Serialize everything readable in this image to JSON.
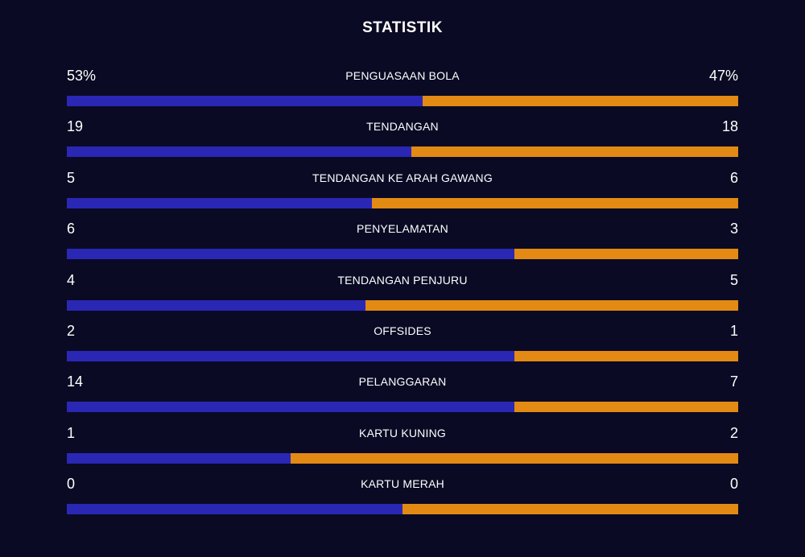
{
  "title": "STATISTIK",
  "colors": {
    "home": "#2a27b5",
    "away": "#e28a13",
    "background": "#0a0a24"
  },
  "stats": [
    {
      "label": "PENGUASAAN BOLA",
      "home": "53%",
      "away": "47%",
      "home_value": 53,
      "away_value": 47
    },
    {
      "label": "TENDANGAN",
      "home": "19",
      "away": "18",
      "home_value": 19,
      "away_value": 18
    },
    {
      "label": "TENDANGAN KE ARAH GAWANG",
      "home": "5",
      "away": "6",
      "home_value": 5,
      "away_value": 6
    },
    {
      "label": "PENYELAMATAN",
      "home": "6",
      "away": "3",
      "home_value": 6,
      "away_value": 3
    },
    {
      "label": "TENDANGAN PENJURU",
      "home": "4",
      "away": "5",
      "home_value": 4,
      "away_value": 5
    },
    {
      "label": "OFFSIDES",
      "home": "2",
      "away": "1",
      "home_value": 2,
      "away_value": 1
    },
    {
      "label": "PELANGGARAN",
      "home": "14",
      "away": "7",
      "home_value": 14,
      "away_value": 7
    },
    {
      "label": "KARTU KUNING",
      "home": "1",
      "away": "2",
      "home_value": 1,
      "away_value": 2
    },
    {
      "label": "KARTU MERAH",
      "home": "0",
      "away": "0",
      "home_value": 0,
      "away_value": 0
    }
  ]
}
